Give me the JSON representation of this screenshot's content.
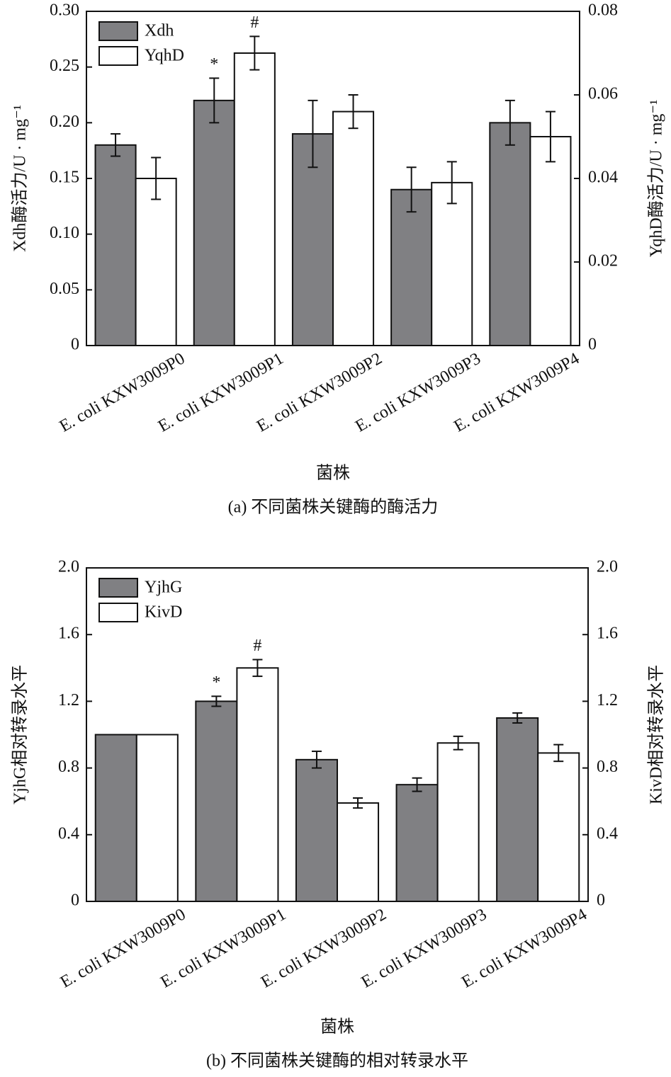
{
  "chart_data": [
    {
      "type": "bar",
      "caption": "(a) 不同菌株关键酶的酶活力",
      "x_label": "菌株",
      "y_label": "Xdh酶活力/U · mg⁻¹",
      "y2_label": "YqhD酶活力/U · mg⁻¹",
      "categories": [
        "E. coli KXW3009P0",
        "E. coli KXW3009P1",
        "E. coli KXW3009P2",
        "E. coli KXW3009P3",
        "E. coli KXW3009P4"
      ],
      "series": [
        {
          "name": "Xdh",
          "color": "#808083",
          "values": [
            0.18,
            0.22,
            0.19,
            0.14,
            0.2
          ],
          "errors": [
            0.01,
            0.02,
            0.03,
            0.02,
            0.02
          ]
        },
        {
          "name": "YqhD",
          "color": "#ffffff",
          "axis": "y2",
          "values": [
            0.04,
            0.07,
            0.056,
            0.039,
            0.05
          ],
          "errors": [
            0.005,
            0.004,
            0.004,
            0.005,
            0.006
          ]
        }
      ],
      "ylim": [
        0,
        0.3
      ],
      "yticks": [
        0,
        0.05,
        {
          "value": 0.1,
          "label": "0.10"
        },
        0.15,
        {
          "value": 0.2,
          "label": "0.20"
        },
        0.25,
        {
          "value": 0.3,
          "label": "0.30"
        }
      ],
      "y2lim": [
        0,
        0.08
      ],
      "y2ticks": [
        0,
        0.02,
        0.04,
        0.06,
        0.08
      ],
      "annotations": [
        {
          "text": "*",
          "series": "Xdh",
          "category": "E. coli KXW3009P1"
        },
        {
          "text": "#",
          "series": "YqhD",
          "category": "E. coli KXW3009P1"
        }
      ],
      "legend": "upper left"
    },
    {
      "type": "bar",
      "caption": "(b) 不同菌株关键酶的相对转录水平",
      "x_label": "菌株",
      "y_label": "YjhG相对转录水平",
      "y2_label": "KivD相对转录水平",
      "categories": [
        "E. coli KXW3009P0",
        "E. coli KXW3009P1",
        "E. coli KXW3009P2",
        "E. coli KXW3009P3",
        "E. coli KXW3009P4"
      ],
      "series": [
        {
          "name": "YjhG",
          "color": "#808083",
          "values": [
            1.0,
            1.2,
            0.85,
            0.7,
            1.1
          ],
          "errors": [
            null,
            0.03,
            0.05,
            0.04,
            0.03
          ]
        },
        {
          "name": "KivD",
          "color": "#ffffff",
          "axis": "y2",
          "values": [
            1.0,
            1.4,
            0.59,
            0.95,
            0.89
          ],
          "errors": [
            null,
            0.05,
            0.03,
            0.04,
            0.05
          ]
        }
      ],
      "ylim": [
        0,
        2
      ],
      "yticks": [
        0,
        0.4,
        0.8,
        1.2,
        1.6,
        {
          "value": 2,
          "label": "2.0"
        }
      ],
      "y2lim": [
        0,
        2
      ],
      "y2ticks": [
        0,
        0.4,
        0.8,
        1.2,
        1.6,
        {
          "value": 2,
          "label": "2.0"
        }
      ],
      "annotations": [
        {
          "text": "*",
          "series": "YjhG",
          "category": "E. coli KXW3009P1"
        },
        {
          "text": "#",
          "series": "KivD",
          "category": "E. coli KXW3009P1"
        }
      ],
      "legend": "upper left"
    }
  ]
}
